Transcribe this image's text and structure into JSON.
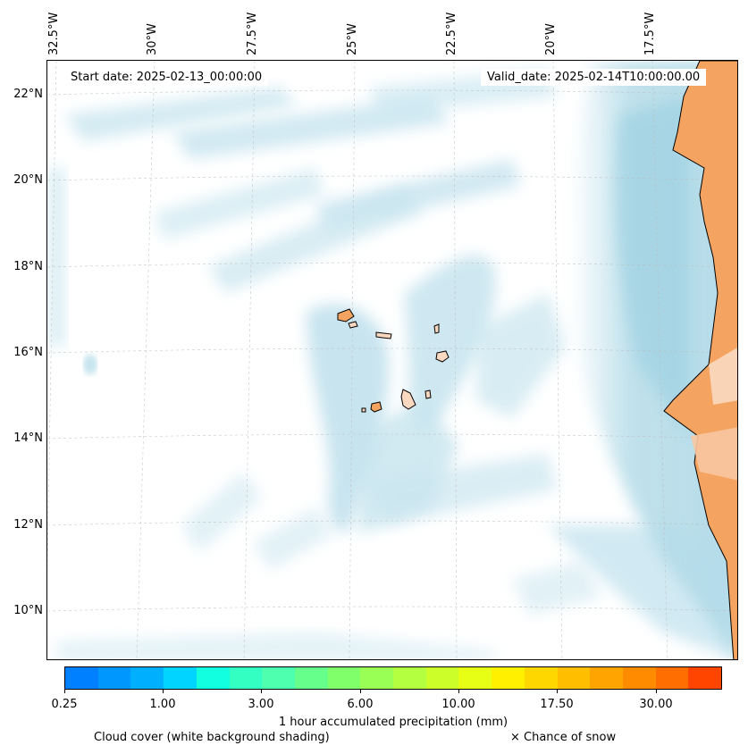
{
  "map": {
    "start_date": "Start date: 2025-02-13_00:00:00",
    "valid_date": "Valid_date: 2025-02-14T10:00:00.00",
    "lon_labels": [
      "32.5°W",
      "30°W",
      "27.5°W",
      "25°W",
      "22.5°W",
      "20°W",
      "17.5°W"
    ],
    "lat_labels": [
      "22°N",
      "20°N",
      "18°N",
      "16°N",
      "14°N",
      "12°N",
      "10°N"
    ],
    "colors": {
      "land": "#f4a460",
      "cloud": "#add8e6",
      "coastline": "#000000"
    }
  },
  "colorbar": {
    "label": "1 hour accumulated precipitation (mm)",
    "tick_labels": [
      "0.25",
      "1.00",
      "3.00",
      "6.00",
      "10.00",
      "17.50",
      "30.00"
    ],
    "colors": [
      "#007fff",
      "#0097ff",
      "#00b0ff",
      "#00d4ff",
      "#12ffe0",
      "#33ffc2",
      "#4dffae",
      "#66ff8c",
      "#80ff6b",
      "#99ff55",
      "#b3ff40",
      "#ccff2a",
      "#e6ff14",
      "#fff000",
      "#ffd700",
      "#ffbf00",
      "#ffa400",
      "#ff8c00",
      "#ff6e00",
      "#ff4500"
    ]
  },
  "legend": {
    "cloud_note": "Cloud cover (white background shading)",
    "snow_note": "× Chance of snow"
  }
}
